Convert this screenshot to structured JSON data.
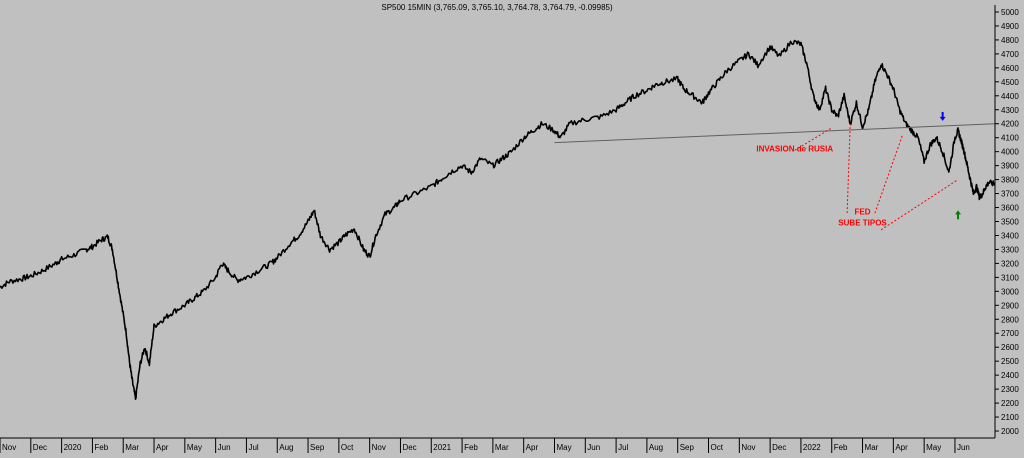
{
  "chart_data": {
    "type": "line",
    "title": "SP500 15MIN (3,765.09, 3,765.10, 3,764.78, 3,764.79, -0.09985)",
    "xlabel": "",
    "ylabel": "",
    "ylim": [
      1950,
      5050
    ],
    "y_ticks": [
      2000,
      2100,
      2200,
      2300,
      2400,
      2500,
      2600,
      2700,
      2800,
      2900,
      3000,
      3100,
      3200,
      3300,
      3400,
      3500,
      3600,
      3700,
      3800,
      3900,
      4000,
      4100,
      4200,
      4300,
      4400,
      4500,
      4600,
      4700,
      4800,
      4900,
      5000
    ],
    "x_labels": [
      {
        "label": "Nov",
        "t": 0.0
      },
      {
        "label": "Dec",
        "t": 1.0
      },
      {
        "label": "2020",
        "t": 2.0
      },
      {
        "label": "Feb",
        "t": 3.0
      },
      {
        "label": "Mar",
        "t": 4.0
      },
      {
        "label": "Apr",
        "t": 5.0
      },
      {
        "label": "May",
        "t": 6.0
      },
      {
        "label": "Jun",
        "t": 7.0
      },
      {
        "label": "Jul",
        "t": 8.0
      },
      {
        "label": "Aug",
        "t": 9.0
      },
      {
        "label": "Sep",
        "t": 10.0
      },
      {
        "label": "Oct",
        "t": 11.0
      },
      {
        "label": "Nov",
        "t": 12.0
      },
      {
        "label": "Dec",
        "t": 13.0
      },
      {
        "label": "2021",
        "t": 14.0
      },
      {
        "label": "Feb",
        "t": 15.0
      },
      {
        "label": "Mar",
        "t": 16.0
      },
      {
        "label": "Apr",
        "t": 17.0
      },
      {
        "label": "May",
        "t": 18.0
      },
      {
        "label": "Jun",
        "t": 19.0
      },
      {
        "label": "Jul",
        "t": 20.0
      },
      {
        "label": "Aug",
        "t": 21.0
      },
      {
        "label": "Sep",
        "t": 22.0
      },
      {
        "label": "Oct",
        "t": 23.0
      },
      {
        "label": "Nov",
        "t": 24.0
      },
      {
        "label": "Dec",
        "t": 25.0
      },
      {
        "label": "2022",
        "t": 26.0
      },
      {
        "label": "Feb",
        "t": 27.0
      },
      {
        "label": "Mar",
        "t": 28.0
      },
      {
        "label": "Apr",
        "t": 29.0
      },
      {
        "label": "May",
        "t": 30.0
      },
      {
        "label": "Jun",
        "t": 31.0
      }
    ],
    "series": [
      {
        "color": "#000000",
        "x": [
          0,
          0.3,
          0.7,
          1.0,
          1.4,
          1.8,
          2.0,
          2.4,
          2.8,
          3.0,
          3.3,
          3.5,
          3.65,
          3.8,
          3.95,
          4.1,
          4.2,
          4.3,
          4.4,
          4.55,
          4.7,
          4.85,
          5.0,
          5.3,
          5.6,
          6.0,
          6.3,
          6.6,
          7.0,
          7.2,
          7.4,
          7.7,
          8.0,
          8.4,
          8.8,
          9.0,
          9.4,
          9.7,
          10.0,
          10.2,
          10.4,
          10.7,
          11.0,
          11.2,
          11.5,
          11.8,
          12.0,
          12.2,
          12.5,
          12.8,
          13.0,
          13.5,
          14.0,
          14.3,
          14.6,
          15.0,
          15.3,
          15.6,
          16.0,
          16.3,
          16.6,
          17.0,
          17.3,
          17.6,
          18.0,
          18.2,
          18.5,
          19.0,
          19.5,
          20.0,
          20.3,
          20.6,
          21.0,
          21.3,
          21.6,
          22.0,
          22.2,
          22.5,
          22.8,
          23.0,
          23.3,
          23.6,
          24.0,
          24.3,
          24.6,
          25.0,
          25.3,
          25.7,
          26.0,
          26.2,
          26.4,
          26.6,
          26.8,
          27.0,
          27.2,
          27.4,
          27.6,
          27.8,
          28.0,
          28.2,
          28.4,
          28.6,
          28.8,
          29.0,
          29.2,
          29.4,
          29.6,
          29.8,
          30.0,
          30.2,
          30.4,
          30.6,
          30.8,
          31.0,
          31.1,
          31.2,
          31.3,
          31.4,
          31.5,
          31.6,
          31.7,
          31.8,
          31.9,
          32.0,
          32.1,
          32.3
        ],
        "y": [
          3030,
          3070,
          3090,
          3110,
          3150,
          3200,
          3230,
          3260,
          3300,
          3320,
          3370,
          3390,
          3300,
          3100,
          2900,
          2700,
          2500,
          2350,
          2230,
          2480,
          2600,
          2480,
          2750,
          2800,
          2850,
          2900,
          2950,
          3000,
          3100,
          3200,
          3150,
          3080,
          3100,
          3150,
          3200,
          3240,
          3340,
          3400,
          3500,
          3580,
          3400,
          3300,
          3350,
          3400,
          3450,
          3300,
          3250,
          3400,
          3550,
          3600,
          3650,
          3700,
          3750,
          3800,
          3850,
          3900,
          3850,
          3950,
          3900,
          3950,
          4000,
          4100,
          4150,
          4200,
          4150,
          4100,
          4200,
          4230,
          4250,
          4300,
          4350,
          4400,
          4440,
          4480,
          4500,
          4520,
          4450,
          4400,
          4350,
          4420,
          4500,
          4580,
          4650,
          4700,
          4620,
          4750,
          4680,
          4790,
          4770,
          4620,
          4400,
          4300,
          4450,
          4300,
          4250,
          4400,
          4200,
          4350,
          4180,
          4300,
          4500,
          4630,
          4550,
          4450,
          4300,
          4200,
          4150,
          4100,
          3930,
          4050,
          4100,
          4000,
          3850,
          4100,
          4150,
          4080,
          4000,
          3900,
          3800,
          3700,
          3750,
          3670,
          3700,
          3750,
          3780,
          3765
        ]
      },
      {
        "color": "#606060",
        "x": [
          18.0,
          32.3
        ],
        "y": [
          4065,
          4200
        ]
      }
    ],
    "annotations": [
      {
        "text": "INVASION de RUSIA",
        "color": "#ff0000",
        "x": 25.8,
        "y": 4000
      },
      {
        "text": "FED",
        "color": "#ff0000",
        "x": 28.0,
        "y": 3550
      },
      {
        "text": "SUBE TIPOS",
        "color": "#ff0000",
        "x": 28.0,
        "y": 3470
      }
    ],
    "markers": [
      {
        "name": "blue-arrow-down",
        "color": "#0000ff",
        "x": 30.6,
        "y": 4220
      },
      {
        "name": "green-arrow-up",
        "color": "#008000",
        "x": 31.1,
        "y": 3580
      }
    ],
    "grid": false,
    "legend": "none"
  }
}
